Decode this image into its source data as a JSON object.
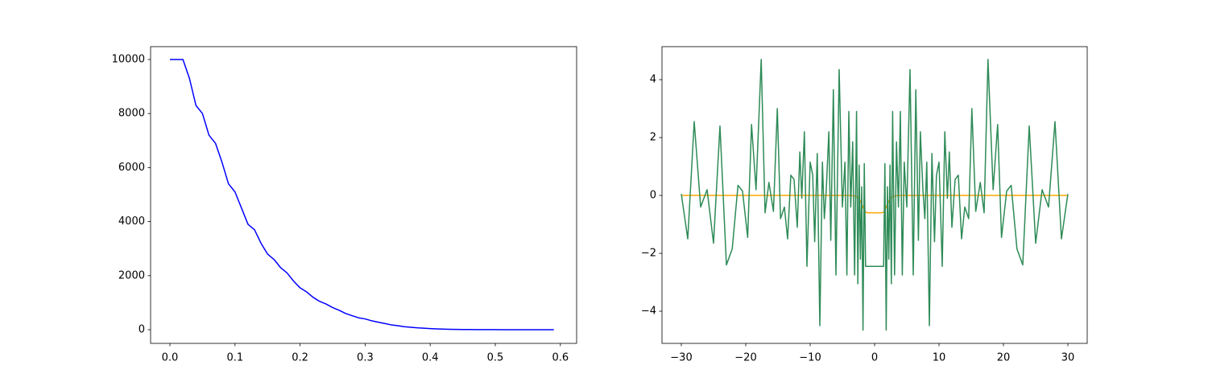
{
  "chart_data": [
    {
      "type": "line",
      "x": [
        0,
        0.01,
        0.02,
        0.03,
        0.04,
        0.05,
        0.06,
        0.07,
        0.08,
        0.09,
        0.1,
        0.11,
        0.12,
        0.13,
        0.14,
        0.15,
        0.16,
        0.17,
        0.18,
        0.19,
        0.2,
        0.21,
        0.22,
        0.23,
        0.24,
        0.25,
        0.26,
        0.27,
        0.28,
        0.29,
        0.3,
        0.31,
        0.32,
        0.33,
        0.34,
        0.35,
        0.36,
        0.37,
        0.38,
        0.39,
        0.4,
        0.41,
        0.42,
        0.43,
        0.44,
        0.45,
        0.46,
        0.47,
        0.48,
        0.49,
        0.5,
        0.51,
        0.52,
        0.53,
        0.54,
        0.55,
        0.56,
        0.57,
        0.58,
        0.59
      ],
      "series": [
        {
          "color": "#0000ff",
          "values": [
            10000,
            10000,
            10000,
            9300,
            8300,
            8000,
            7200,
            6900,
            6200,
            5400,
            5100,
            4500,
            3900,
            3700,
            3200,
            2800,
            2600,
            2300,
            2100,
            1800,
            1550,
            1400,
            1200,
            1050,
            950,
            820,
            720,
            600,
            520,
            440,
            400,
            330,
            280,
            230,
            180,
            150,
            110,
            90,
            70,
            55,
            40,
            30,
            22,
            16,
            12,
            9,
            7,
            5,
            4,
            3,
            2,
            1,
            1,
            0,
            0,
            0,
            0,
            0,
            0,
            0
          ]
        }
      ],
      "xlim": [
        -0.0297,
        0.625
      ],
      "ylim": [
        -506,
        10476
      ],
      "xticks": [
        {
          "value": 0,
          "label": "0.0"
        },
        {
          "value": 0.1,
          "label": "0.1"
        },
        {
          "value": 0.2,
          "label": "0.2"
        },
        {
          "value": 0.3,
          "label": "0.3"
        },
        {
          "value": 0.4,
          "label": "0.4"
        },
        {
          "value": 0.5,
          "label": "0.5"
        },
        {
          "value": 0.6,
          "label": "0.6"
        }
      ],
      "yticks": [
        0,
        2000,
        4000,
        6000,
        8000,
        10000
      ]
    },
    {
      "type": "line",
      "x": [
        -30,
        -29,
        -28,
        -27,
        -26,
        -25,
        -24,
        -23,
        -22.1,
        -21.2,
        -20.5,
        -19.7,
        -19.1,
        -18.4,
        -17.6,
        -17,
        -16.4,
        -15.7,
        -15.1,
        -14.6,
        -14,
        -13.5,
        -13,
        -12.5,
        -12,
        -11.6,
        -11.3,
        -10.9,
        -10.5,
        -10,
        -9.6,
        -9.3,
        -8.9,
        -8.5,
        -8.1,
        -7.8,
        -7.5,
        -7.1,
        -6.8,
        -6.4,
        -6,
        -5.5,
        -5,
        -4.6,
        -4.3,
        -4,
        -3.7,
        -3.4,
        -3.1,
        -2.8,
        -2.6,
        -2.4,
        -2.2,
        -2,
        -1.8,
        -1.6,
        -1.4,
        -1.1,
        0,
        1.1,
        1.4,
        1.6,
        1.8,
        2,
        2.2,
        2.4,
        2.6,
        2.8,
        3.1,
        3.4,
        3.7,
        4,
        4.3,
        4.6,
        5,
        5.5,
        6,
        6.4,
        6.8,
        7.1,
        7.5,
        7.8,
        8.1,
        8.5,
        8.9,
        9.3,
        9.6,
        10,
        10.5,
        10.9,
        11.3,
        11.6,
        12,
        12.5,
        13,
        13.5,
        14,
        14.6,
        15.1,
        15.7,
        16.4,
        17,
        17.6,
        18.4,
        19.1,
        19.7,
        20.5,
        21.2,
        22.1,
        23,
        24,
        25,
        26,
        27,
        28,
        29,
        30
      ],
      "series": [
        {
          "color": "#ffa500",
          "values": [
            0,
            0,
            0,
            0,
            0,
            0,
            0,
            0,
            0,
            0,
            0,
            0,
            0,
            0,
            0,
            0,
            0,
            0,
            0,
            0,
            0,
            0,
            0,
            0,
            0,
            0,
            0,
            0,
            0,
            0,
            0,
            0,
            0,
            0,
            0,
            0,
            0,
            0,
            0,
            0,
            0,
            0,
            0,
            0,
            0,
            0,
            0,
            -0.01,
            -0.02,
            -0.04,
            -0.07,
            -0.12,
            -0.2,
            -0.3,
            -0.4,
            -0.5,
            -0.58,
            -0.6,
            -0.6,
            -0.6,
            -0.58,
            -0.5,
            -0.4,
            -0.3,
            -0.2,
            -0.12,
            -0.07,
            -0.04,
            -0.02,
            -0.01,
            0,
            0,
            0,
            0,
            0,
            0,
            0,
            0,
            0,
            0,
            0,
            0,
            0,
            0,
            0,
            0,
            0,
            0,
            0,
            0,
            0,
            0,
            0,
            0,
            0,
            0,
            0,
            0,
            0,
            0,
            0,
            0,
            0,
            0,
            0,
            0,
            0,
            0,
            0,
            0,
            0,
            0,
            0,
            0,
            0,
            0,
            0
          ]
        },
        {
          "color": "#2e8b57",
          "values": [
            0.05,
            -1.5,
            2.55,
            -0.4,
            0.2,
            -1.65,
            2.4,
            -2.4,
            -1.85,
            0.35,
            0.15,
            -1.45,
            2.45,
            0.2,
            4.7,
            -0.6,
            0.45,
            -0.55,
            3.0,
            -0.8,
            -0.4,
            -1.5,
            0.7,
            0.55,
            -1.1,
            1.5,
            -0.1,
            2.2,
            -2.45,
            1.15,
            0.7,
            -1.6,
            1.45,
            -4.5,
            1.15,
            -0.8,
            0.2,
            2.2,
            -1.55,
            3.65,
            -2.75,
            4.35,
            -0.4,
            1.15,
            -2.75,
            2.9,
            -0.4,
            1.85,
            -2.75,
            2.9,
            -3.05,
            1.05,
            -2.2,
            0.3,
            -4.65,
            1.1,
            -2.45,
            -2.45,
            -2.45,
            -2.45,
            -2.45,
            1.1,
            -4.65,
            0.3,
            -2.2,
            1.05,
            -3.05,
            2.9,
            -2.75,
            1.85,
            -0.4,
            2.9,
            -2.75,
            1.15,
            -0.4,
            4.35,
            -2.75,
            3.65,
            -1.55,
            2.2,
            0.2,
            -0.8,
            1.15,
            -4.5,
            1.45,
            -1.6,
            0.7,
            1.15,
            -2.45,
            2.2,
            -0.1,
            1.5,
            -1.1,
            0.55,
            0.7,
            -1.5,
            -0.4,
            -0.8,
            3.0,
            -0.55,
            0.45,
            -0.6,
            4.7,
            0.2,
            2.45,
            -1.45,
            0.15,
            0.35,
            -1.85,
            -2.4,
            2.4,
            -1.65,
            0.2,
            -0.4,
            2.55,
            -1.5,
            0.05
          ]
        }
      ],
      "xlim": [
        -33,
        33
      ],
      "ylim": [
        -5.11,
        5.14
      ],
      "xticks": [
        {
          "value": -30,
          "label": "−30"
        },
        {
          "value": -20,
          "label": "−20"
        },
        {
          "value": -10,
          "label": "−10"
        },
        0,
        10,
        20,
        30
      ],
      "yticks": [
        {
          "value": -4,
          "label": "−4"
        },
        {
          "value": -2,
          "label": "−2"
        },
        0,
        2,
        4
      ]
    }
  ]
}
